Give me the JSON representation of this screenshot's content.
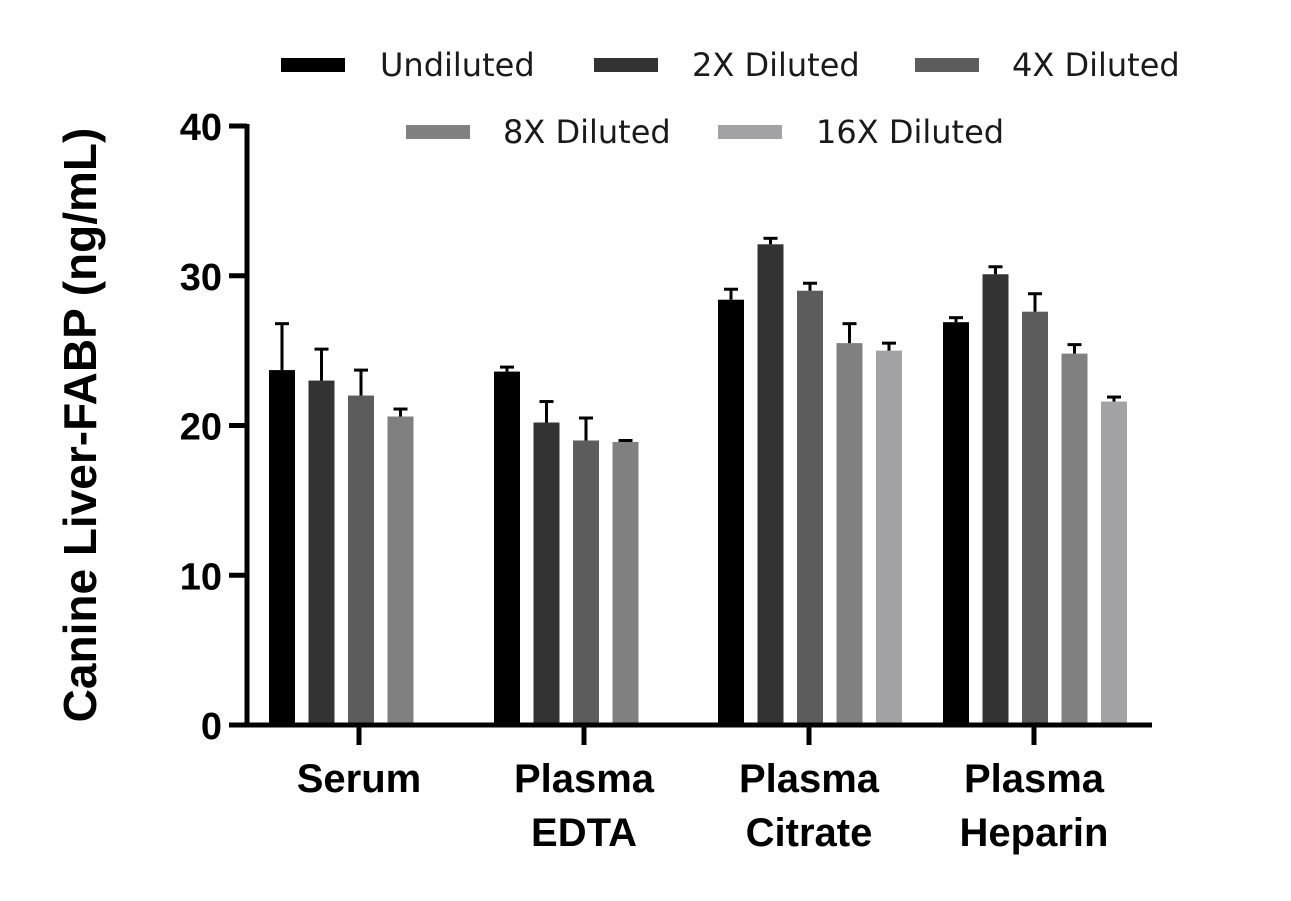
{
  "chart_data": {
    "type": "bar",
    "title": "",
    "xlabel": "",
    "ylabel": "Canine Liver-FABP (ng/mL)",
    "ylim": [
      0,
      40
    ],
    "yticks": [
      "0",
      "10",
      "20",
      "30",
      "40"
    ],
    "grid": false,
    "legend_position": "top",
    "categories": [
      {
        "line1": "Serum",
        "line2": ""
      },
      {
        "line1": "Plasma",
        "line2": "EDTA"
      },
      {
        "line1": "Plasma",
        "line2": "Citrate"
      },
      {
        "line1": "Plasma",
        "line2": "Heparin"
      }
    ],
    "series": [
      {
        "name": "Undiluted",
        "color": "#000000",
        "values": [
          23.7,
          23.6,
          28.4,
          26.9
        ],
        "errors": [
          3.1,
          0.3,
          0.7,
          0.3
        ]
      },
      {
        "name": "2X Diluted",
        "color": "#333333",
        "values": [
          23.0,
          20.2,
          32.1,
          30.1
        ],
        "errors": [
          2.1,
          1.4,
          0.4,
          0.5
        ]
      },
      {
        "name": "4X Diluted",
        "color": "#5c5c5c",
        "values": [
          22.0,
          19.0,
          29.0,
          27.6
        ],
        "errors": [
          1.7,
          1.5,
          0.5,
          1.2
        ]
      },
      {
        "name": "8X Diluted",
        "color": "#808080",
        "values": [
          20.6,
          18.9,
          25.5,
          24.8
        ],
        "errors": [
          0.5,
          0.1,
          1.3,
          0.6
        ]
      },
      {
        "name": "16X Diluted",
        "color": "#a3a3a6",
        "values": [
          null,
          null,
          25.0,
          21.6
        ],
        "errors": [
          null,
          null,
          0.5,
          0.3
        ]
      }
    ]
  }
}
